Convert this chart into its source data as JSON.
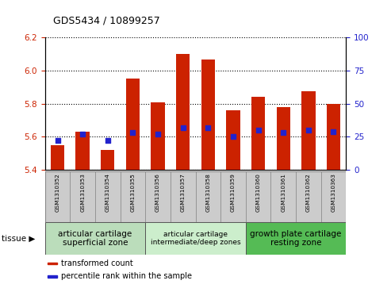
{
  "title": "GDS5434 / 10899257",
  "samples": [
    "GSM1310352",
    "GSM1310353",
    "GSM1310354",
    "GSM1310355",
    "GSM1310356",
    "GSM1310357",
    "GSM1310358",
    "GSM1310359",
    "GSM1310360",
    "GSM1310361",
    "GSM1310362",
    "GSM1310363"
  ],
  "transformed_count": [
    5.55,
    5.63,
    5.52,
    5.95,
    5.81,
    6.1,
    6.065,
    5.76,
    5.84,
    5.78,
    5.875,
    5.8
  ],
  "percentile_rank": [
    22,
    27,
    22,
    28,
    27,
    32,
    32,
    25,
    30,
    28,
    30,
    29
  ],
  "bar_bottom": 5.4,
  "ylim_left": [
    5.4,
    6.2
  ],
  "ylim_right": [
    0,
    100
  ],
  "yticks_left": [
    5.4,
    5.6,
    5.8,
    6.0,
    6.2
  ],
  "yticks_right": [
    0,
    25,
    50,
    75,
    100
  ],
  "bar_color": "#cc2200",
  "dot_color": "#2222cc",
  "tissue_groups": [
    {
      "label": "articular cartilage\nsuperficial zone",
      "indices": [
        0,
        1,
        2,
        3
      ],
      "color": "#bbddbb",
      "fontsize": 7.5
    },
    {
      "label": "articular cartilage\nintermediate/deep zones",
      "indices": [
        4,
        5,
        6,
        7
      ],
      "color": "#cceecc",
      "fontsize": 6.5
    },
    {
      "label": "growth plate cartilage\nresting zone",
      "indices": [
        8,
        9,
        10,
        11
      ],
      "color": "#55bb55",
      "fontsize": 7.5
    }
  ],
  "tissue_label": "tissue ▶",
  "legend_items": [
    {
      "color": "#cc2200",
      "label": "transformed count"
    },
    {
      "color": "#2222cc",
      "label": "percentile rank within the sample"
    }
  ],
  "bar_width": 0.55,
  "dot_size": 18,
  "tick_label_color_left": "#cc2200",
  "tick_label_color_right": "#2222cc",
  "xticklabel_bg": "#cccccc",
  "grid_linestyle": "dotted",
  "grid_color": "#000000",
  "grid_linewidth": 0.8
}
